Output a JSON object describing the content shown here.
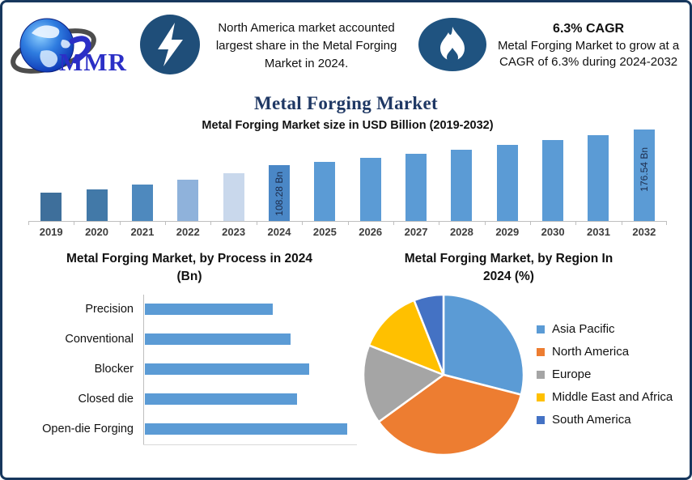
{
  "brand": {
    "logo_text": "MMR"
  },
  "colors": {
    "frame_navy": "#17375d",
    "icon_navy": "#1f4e79",
    "flame_navy": "#1f5380",
    "title_navy": "#1f3864",
    "logo_blue": "#2b2fc6",
    "axis_gray": "#bfbfbf"
  },
  "header": {
    "highlight1": {
      "icon": "lightning-icon",
      "text": "North America market accounted largest share in the Metal Forging Market in 2024."
    },
    "highlight2": {
      "icon": "flame-icon",
      "title": "6.3% CAGR",
      "text": "Metal Forging Market to grow at a CAGR of 6.3% during 2024-2032"
    }
  },
  "page_title": "Metal Forging Market",
  "chart_data": [
    {
      "id": "market_size",
      "type": "bar",
      "title": "Metal Forging Market size in USD Billion (2019-2032)",
      "xlabel": "",
      "ylabel": "USD Billion",
      "categories": [
        "2019",
        "2020",
        "2021",
        "2022",
        "2023",
        "2024",
        "2025",
        "2026",
        "2027",
        "2028",
        "2029",
        "2030",
        "2031",
        "2032"
      ],
      "values": [
        55.2,
        60.6,
        70.4,
        80.1,
        92.0,
        108.28,
        115.1,
        122.35,
        130.06,
        138.25,
        146.96,
        156.22,
        166.06,
        176.54
      ],
      "ylim": [
        0,
        185
      ],
      "grid": false,
      "data_labels": {
        "2024": "108.28 Bn",
        "2032": "176.54 Bn"
      },
      "bar_colors": [
        "#3e6f9b",
        "#4279a8",
        "#4e89be",
        "#8fb2db",
        "#c9d8ec",
        "#4a87c6",
        "#5b9bd5",
        "#5b9bd5",
        "#5b9bd5",
        "#5b9bd5",
        "#5b9bd5",
        "#5b9bd5",
        "#5b9bd5",
        "#5b9bd5"
      ],
      "note": "values for unlabeled years estimated from bar heights (2024 and 2032 labeled); 2024-2032 follow the stated 6.3% CAGR"
    },
    {
      "id": "by_process",
      "type": "bar",
      "orientation": "horizontal",
      "title": "Metal Forging Market, by Process in 2024 (Bn)",
      "title_lines": [
        "Metal Forging Market, by Process in 2024",
        "(Bn)"
      ],
      "categories": [
        "Precision",
        "Conventional",
        "Blocker",
        "Closed die",
        "Open-die Forging"
      ],
      "values": [
        0.63,
        0.72,
        0.81,
        0.75,
        1.0
      ],
      "value_note": "relative bar lengths (fraction of longest bar); no numeric axis shown",
      "bar_color": "#5b9bd5",
      "grid": false
    },
    {
      "id": "by_region",
      "type": "pie",
      "title": "Metal Forging Market, by Region In 2024 (%)",
      "title_lines": [
        "Metal Forging Market, by Region In",
        "2024 (%)"
      ],
      "categories": [
        "Asia Pacific",
        "North America",
        "Europe",
        "Middle East and Africa",
        "South America"
      ],
      "values": [
        29,
        36,
        16,
        13,
        6
      ],
      "colors": [
        "#5b9bd5",
        "#ed7d31",
        "#a5a5a5",
        "#ffc000",
        "#4472c4"
      ],
      "legend_position": "right",
      "start_angle_deg": 0,
      "note": "slice percentages estimated from slice angles; no data labels shown"
    }
  ]
}
